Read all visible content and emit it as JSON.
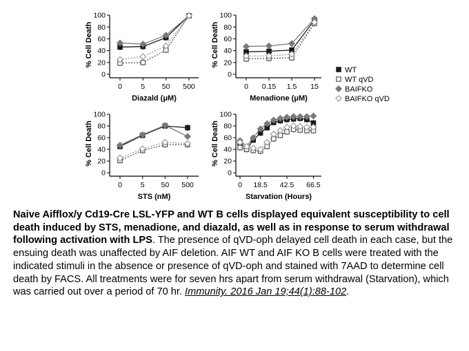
{
  "chart_data": [
    {
      "type": "line",
      "ylabel": "% Cell Death",
      "xlabel": "Diazald (μM)",
      "categories": [
        "0",
        "5",
        "50",
        "500"
      ],
      "ylim": [
        0,
        100
      ],
      "yticks": [
        0,
        20,
        40,
        60,
        80,
        100
      ],
      "series": [
        {
          "name": "WT",
          "values": [
            46,
            47,
            62,
            99
          ]
        },
        {
          "name": "WT qVD",
          "values": [
            19,
            20,
            41,
            99
          ]
        },
        {
          "name": "BAIFKO",
          "values": [
            53,
            51,
            66,
            99
          ]
        },
        {
          "name": "BAIFKO qVD",
          "values": [
            25,
            30,
            48,
            99
          ]
        }
      ]
    },
    {
      "type": "line",
      "ylabel": "% Cell Death",
      "xlabel": "Menadione (μM)",
      "categories": [
        "0",
        "0.15",
        "1.5",
        "15"
      ],
      "ylim": [
        0,
        100
      ],
      "yticks": [
        0,
        20,
        40,
        60,
        80,
        100
      ],
      "series": [
        {
          "name": "WT",
          "values": [
            38,
            39,
            41,
            92
          ]
        },
        {
          "name": "WT qVD",
          "values": [
            26,
            27,
            28,
            86
          ]
        },
        {
          "name": "BAIFKO",
          "values": [
            47,
            48,
            52,
            94
          ]
        },
        {
          "name": "BAIFKO qVD",
          "values": [
            31,
            31,
            34,
            88
          ]
        }
      ]
    },
    {
      "type": "line",
      "ylabel": "% Cell Death",
      "xlabel": "STS (nM)",
      "categories": [
        "0",
        "5",
        "50",
        "500"
      ],
      "ylim": [
        0,
        100
      ],
      "yticks": [
        0,
        20,
        40,
        60,
        80,
        100
      ],
      "series": [
        {
          "name": "WT",
          "values": [
            45,
            64,
            80,
            77
          ]
        },
        {
          "name": "WT qVD",
          "values": [
            21,
            38,
            48,
            48
          ]
        },
        {
          "name": "BAIFKO",
          "values": [
            47,
            65,
            81,
            62
          ]
        },
        {
          "name": "BAIFKO qVD",
          "values": [
            25,
            41,
            52,
            50
          ]
        }
      ]
    },
    {
      "type": "line",
      "ylabel": "% Cell Death",
      "xlabel": "Starvation (Hours)",
      "xlim": [
        0,
        70
      ],
      "xticks": [
        0,
        18.5,
        42.5,
        66.5
      ],
      "xticklabels": [
        "0",
        "18.5",
        "42.5",
        "66.5"
      ],
      "ylim": [
        0,
        100
      ],
      "yticks": [
        0,
        20,
        40,
        60,
        80,
        100
      ],
      "series": [
        {
          "name": "WT",
          "x": [
            0,
            6,
            12,
            18.5,
            24.5,
            30.5,
            36.5,
            42.5,
            48.5,
            54.5,
            60.5,
            66.5
          ],
          "values": [
            51,
            40,
            56,
            68,
            77,
            86,
            89,
            91,
            92,
            93,
            91,
            85
          ]
        },
        {
          "name": "WT qVD",
          "x": [
            0,
            6,
            12,
            18.5,
            24.5,
            30.5,
            36.5,
            42.5,
            48.5,
            54.5,
            60.5,
            66.5
          ],
          "values": [
            43,
            40,
            38,
            37,
            45,
            58,
            64,
            70,
            74,
            73,
            72,
            72
          ]
        },
        {
          "name": "BAIFKO",
          "x": [
            0,
            6,
            12,
            18.5,
            24.5,
            30.5,
            36.5,
            42.5,
            48.5,
            54.5,
            60.5,
            66.5
          ],
          "values": [
            55,
            45,
            60,
            75,
            84,
            90,
            93,
            95,
            96,
            96,
            96,
            97
          ]
        },
        {
          "name": "BAIFKO qVD",
          "x": [
            0,
            6,
            12,
            18.5,
            24.5,
            30.5,
            36.5,
            42.5,
            48.5,
            54.5,
            60.5,
            66.5
          ],
          "values": [
            52,
            45,
            42,
            40,
            52,
            66,
            72,
            78,
            80,
            79,
            78,
            78
          ]
        }
      ]
    }
  ],
  "legend": {
    "items": [
      {
        "label": "WT",
        "marker": "filled-square"
      },
      {
        "label": "WT qVD",
        "marker": "open-square"
      },
      {
        "label": "BAIFKO",
        "marker": "filled-diamond"
      },
      {
        "label": "BAIFKO qVD",
        "marker": "open-diamond"
      }
    ]
  },
  "colors": {
    "wt": "#1a1a1a",
    "wt_qvd": "#555555",
    "baifko": "#7a7a7a",
    "baifko_qvd": "#9a9a9a"
  },
  "caption": {
    "bold": "Naive Aifflox/y Cd19-Cre LSL-YFP and WT B cells displayed equivalent susceptibility to cell death induced by STS, menadione, and diazald, as well as in response to serum withdrawal following activation with LPS",
    "body": ". The presence of qVD-oph delayed cell death in each case, but the ensuing death was unaffected by AIF deletion. AIF WT and AIF KO B cells were treated with the indicated stimuli in the absence or presence of qVD-oph and stained with 7AAD to determine cell death by FACS. All treatments were for seven hrs apart from serum withdrawal (Starvation), which was carried out over a period of 70 hr. ",
    "citation": "Immunity. 2016 Jan 19;44(1):88-102",
    "end": "."
  }
}
